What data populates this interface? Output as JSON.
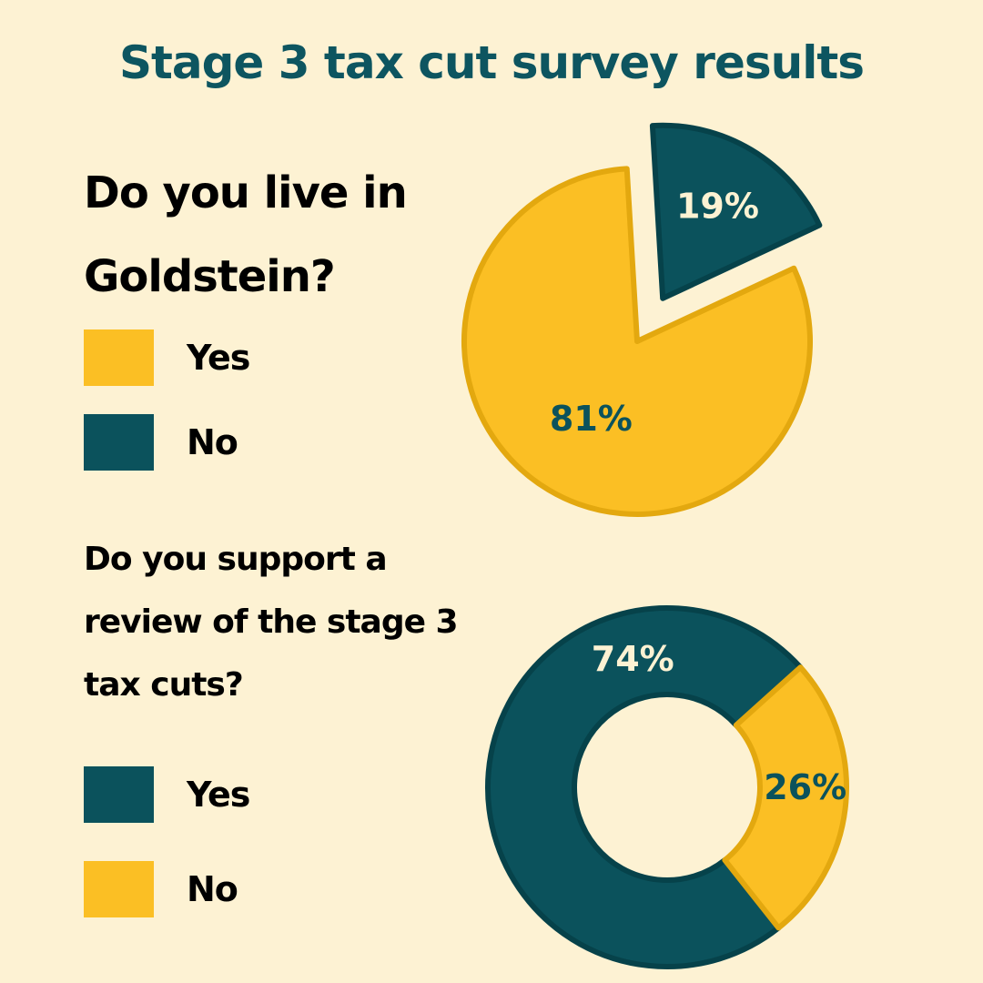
{
  "title": "Stage 3 tax cut survey results",
  "colors": {
    "background": "#fdf2d3",
    "yellow": "#fbbf24",
    "yellow_stroke": "#e3a80f",
    "teal": "#0b525c",
    "teal_stroke": "#06424a",
    "title": "#0d5560",
    "white": "#fdf2d3"
  },
  "chart_data": [
    {
      "type": "pie",
      "title": "Do you live in Goldstein?",
      "legend": [
        {
          "label": "Yes",
          "color": "#fbbf24"
        },
        {
          "label": "No",
          "color": "#0b525c"
        }
      ],
      "slices": [
        {
          "name": "Yes",
          "value": 81,
          "label": "81%",
          "color": "#fbbf24",
          "stroke": "#e3a80f",
          "label_color": "#0b525c"
        },
        {
          "name": "No",
          "value": 19,
          "label": "19%",
          "color": "#0b525c",
          "stroke": "#06424a",
          "label_color": "#fdf2d3"
        }
      ]
    },
    {
      "type": "pie",
      "title": "Do you support a review of the stage 3 tax cuts?",
      "legend": [
        {
          "label": "Yes",
          "color": "#0b525c"
        },
        {
          "label": "No",
          "color": "#fbbf24"
        }
      ],
      "slices": [
        {
          "name": "Yes",
          "value": 74,
          "label": "74%",
          "color": "#0b525c",
          "stroke": "#06424a",
          "label_color": "#fdf2d3"
        },
        {
          "name": "No",
          "value": 26,
          "label": "26%",
          "color": "#fbbf24",
          "stroke": "#e3a80f",
          "label_color": "#0b525c"
        }
      ]
    }
  ]
}
